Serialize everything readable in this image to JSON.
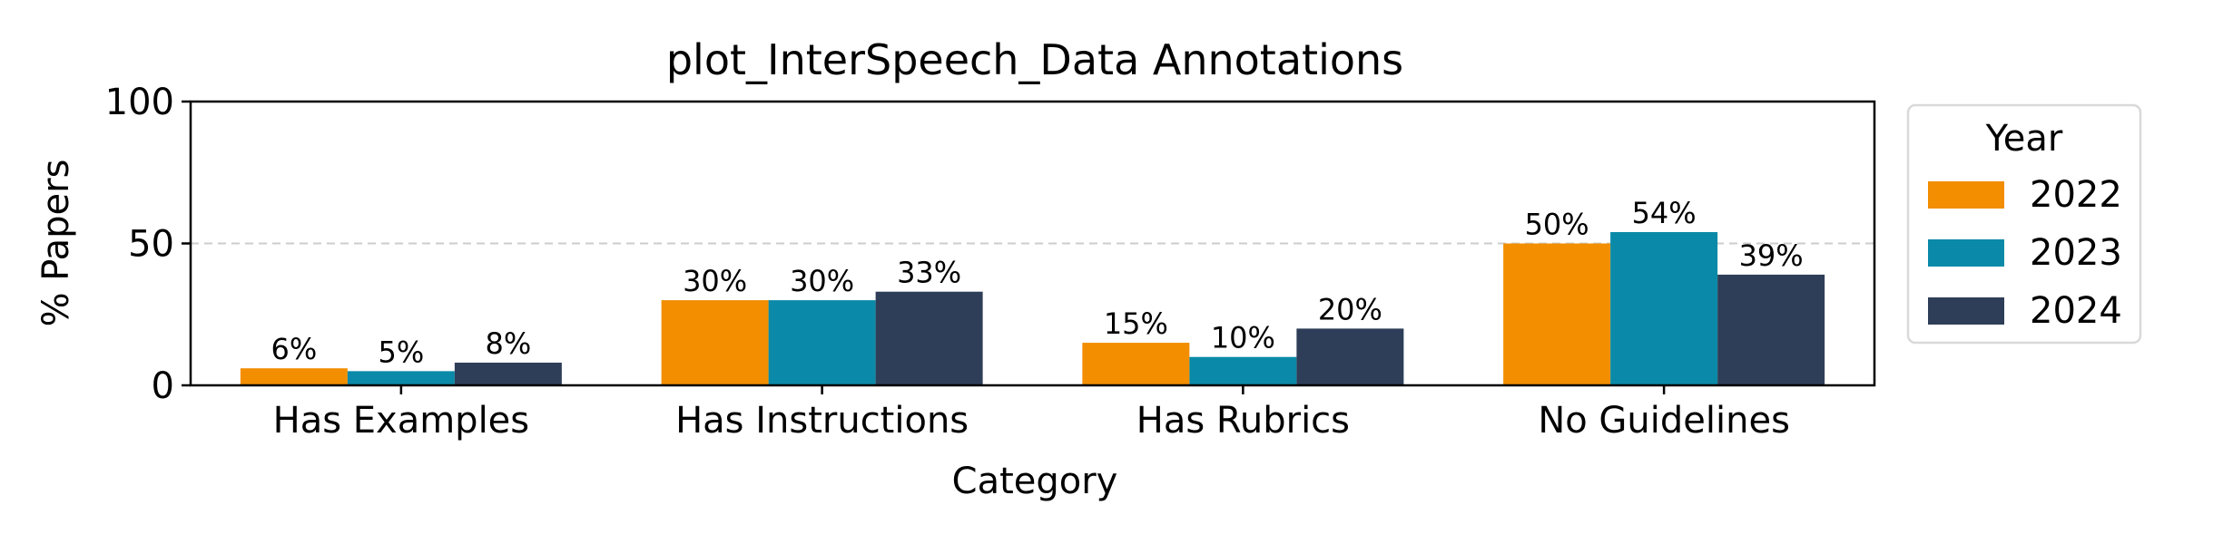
{
  "chart_data": {
    "type": "bar",
    "title": "plot_InterSpeech_Data Annotations",
    "xlabel": "Category",
    "ylabel": "% Papers",
    "categories": [
      "Has Examples",
      "Has Instructions",
      "Has Rubrics",
      "No Guidelines"
    ],
    "series": [
      {
        "name": "2022",
        "color": "#F28E00",
        "values": [
          6,
          30,
          15,
          50
        ],
        "labels": [
          "6%",
          "30%",
          "15%",
          "50%"
        ]
      },
      {
        "name": "2023",
        "color": "#0A8AA8",
        "values": [
          5,
          30,
          10,
          54
        ],
        "labels": [
          "5%",
          "30%",
          "10%",
          "54%"
        ]
      },
      {
        "name": "2024",
        "color": "#2E3E58",
        "values": [
          8,
          33,
          20,
          39
        ],
        "labels": [
          "8%",
          "33%",
          "20%",
          "39%"
        ]
      }
    ],
    "ylim": [
      0,
      100
    ],
    "yticks": [
      "0",
      "50",
      "100"
    ],
    "reference_line": {
      "y": 50,
      "style": "dashed",
      "color": "#CCCCCC"
    },
    "grid": false,
    "legend": {
      "title": "Year",
      "placement": "outside-right"
    }
  }
}
